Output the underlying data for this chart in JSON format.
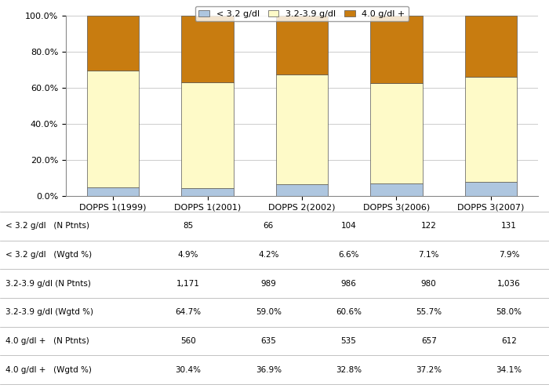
{
  "categories": [
    "DOPPS 1(1999)",
    "DOPPS 1(2001)",
    "DOPPS 2(2002)",
    "DOPPS 3(2006)",
    "DOPPS 3(2007)"
  ],
  "low": [
    4.9,
    4.2,
    6.6,
    7.1,
    7.9
  ],
  "mid": [
    64.7,
    59.0,
    60.6,
    55.7,
    58.0
  ],
  "high": [
    30.4,
    36.9,
    32.8,
    37.2,
    34.1
  ],
  "legend_labels": [
    "< 3.2 g/dl",
    "3.2-3.9 g/dl",
    "4.0 g/dl +"
  ],
  "table_row_labels": [
    "< 3.2 g/dl   (N Ptnts)",
    "< 3.2 g/dl   (Wgtd %)",
    "3.2-3.9 g/dl (N Ptnts)",
    "3.2-3.9 g/dl (Wgtd %)",
    "4.0 g/dl +   (N Ptnts)",
    "4.0 g/dl +   (Wgtd %)"
  ],
  "table_data": [
    [
      "85",
      "66",
      "104",
      "122",
      "131"
    ],
    [
      "4.9%",
      "4.2%",
      "6.6%",
      "7.1%",
      "7.9%"
    ],
    [
      "1,171",
      "989",
      "986",
      "980",
      "1,036"
    ],
    [
      "64.7%",
      "59.0%",
      "60.6%",
      "55.7%",
      "58.0%"
    ],
    [
      "560",
      "635",
      "535",
      "657",
      "612"
    ],
    [
      "30.4%",
      "36.9%",
      "32.8%",
      "37.2%",
      "34.1%"
    ]
  ],
  "yticks": [
    0,
    20,
    40,
    60,
    80,
    100
  ],
  "ytick_labels": [
    "0.0%",
    "20.0%",
    "40.0%",
    "60.0%",
    "80.0%",
    "100.0%"
  ],
  "bar_color_low": "#aec6df",
  "bar_color_mid": "#fefac8",
  "bar_color_high": "#c87c10",
  "edge_color": "#555555",
  "bg_color": "#ffffff",
  "plot_bg_color": "#ffffff",
  "grid_color": "#cccccc",
  "line_color": "#aaaaaa"
}
